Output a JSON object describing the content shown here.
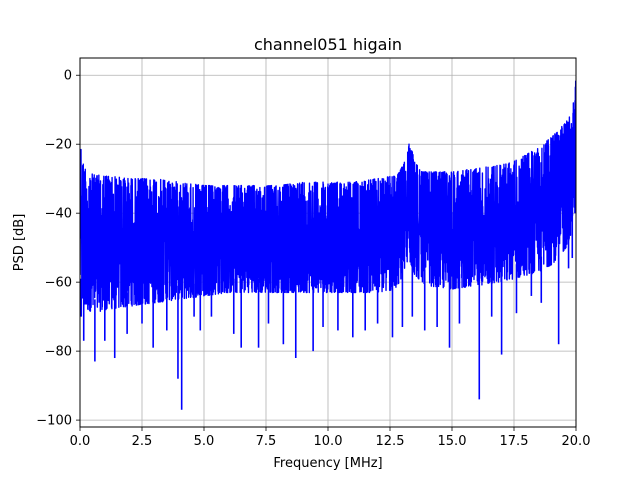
{
  "chart_data": {
    "type": "line",
    "title": "channel051 higain",
    "xlabel": "Frequency [MHz]",
    "ylabel": "PSD [dB]",
    "xlim": [
      0,
      20
    ],
    "ylim": [
      -102,
      5
    ],
    "grid": true,
    "line_color": "#0000ff",
    "x_ticks": [
      0,
      2.5,
      5,
      7.5,
      10,
      12.5,
      15,
      17.5,
      20
    ],
    "x_tick_labels": [
      "0.0",
      "2.5",
      "5.0",
      "7.5",
      "10.0",
      "12.5",
      "15.0",
      "17.5",
      "20.0"
    ],
    "y_ticks": [
      0,
      -20,
      -40,
      -60,
      -80,
      -100
    ],
    "y_tick_labels": [
      "0",
      "−20",
      "−40",
      "−60",
      "−80",
      "−100"
    ],
    "envelope": {
      "x": [
        0.0,
        0.1,
        0.3,
        0.6,
        1.0,
        2.0,
        3.0,
        4.0,
        5.0,
        6.0,
        7.0,
        8.0,
        9.0,
        10.0,
        11.0,
        12.0,
        12.8,
        13.1,
        13.3,
        13.5,
        13.8,
        14.0,
        15.0,
        16.0,
        17.0,
        17.5,
        18.0,
        18.5,
        19.0,
        19.3,
        19.6,
        19.8,
        19.9,
        20.0
      ],
      "upper": [
        -18,
        -25,
        -28,
        -29,
        -29,
        -30,
        -30,
        -31,
        -32,
        -32,
        -32,
        -32,
        -31,
        -31,
        -31,
        -30,
        -29,
        -25,
        -19,
        -25,
        -28,
        -28,
        -28,
        -27,
        -26,
        -25,
        -23,
        -21,
        -18,
        -16,
        -13,
        -9,
        -5,
        0
      ],
      "lower": [
        -60,
        -66,
        -68,
        -69,
        -68,
        -67,
        -66,
        -65,
        -64,
        -63,
        -63,
        -63,
        -63,
        -63,
        -63,
        -63,
        -62,
        -56,
        -54,
        -58,
        -60,
        -61,
        -62,
        -61,
        -60,
        -59,
        -58,
        -57,
        -55,
        -53,
        -50,
        -46,
        -42,
        -38
      ]
    },
    "deep_dips": [
      {
        "x": 0.05,
        "y": -70
      },
      {
        "x": 0.15,
        "y": -77
      },
      {
        "x": 0.6,
        "y": -83
      },
      {
        "x": 1.0,
        "y": -77
      },
      {
        "x": 1.4,
        "y": -82
      },
      {
        "x": 1.9,
        "y": -75
      },
      {
        "x": 2.5,
        "y": -72
      },
      {
        "x": 2.95,
        "y": -79
      },
      {
        "x": 3.5,
        "y": -74
      },
      {
        "x": 3.95,
        "y": -88
      },
      {
        "x": 4.1,
        "y": -97
      },
      {
        "x": 4.6,
        "y": -70
      },
      {
        "x": 4.85,
        "y": -74
      },
      {
        "x": 5.3,
        "y": -70
      },
      {
        "x": 6.2,
        "y": -75
      },
      {
        "x": 6.5,
        "y": -79
      },
      {
        "x": 7.2,
        "y": -79
      },
      {
        "x": 7.6,
        "y": -72
      },
      {
        "x": 8.2,
        "y": -78
      },
      {
        "x": 8.7,
        "y": -82
      },
      {
        "x": 9.4,
        "y": -80
      },
      {
        "x": 9.8,
        "y": -73
      },
      {
        "x": 10.4,
        "y": -74
      },
      {
        "x": 11.0,
        "y": -76
      },
      {
        "x": 11.5,
        "y": -74
      },
      {
        "x": 12.0,
        "y": -72
      },
      {
        "x": 12.6,
        "y": -76
      },
      {
        "x": 13.0,
        "y": -73
      },
      {
        "x": 13.4,
        "y": -70
      },
      {
        "x": 13.9,
        "y": -74
      },
      {
        "x": 14.4,
        "y": -73
      },
      {
        "x": 14.9,
        "y": -79
      },
      {
        "x": 15.3,
        "y": -72
      },
      {
        "x": 16.1,
        "y": -94
      },
      {
        "x": 16.6,
        "y": -70
      },
      {
        "x": 17.0,
        "y": -81
      },
      {
        "x": 17.6,
        "y": -69
      },
      {
        "x": 18.2,
        "y": -64
      },
      {
        "x": 18.6,
        "y": -66
      },
      {
        "x": 19.3,
        "y": -78
      },
      {
        "x": 19.7,
        "y": -56
      },
      {
        "x": 19.85,
        "y": -53
      }
    ]
  }
}
